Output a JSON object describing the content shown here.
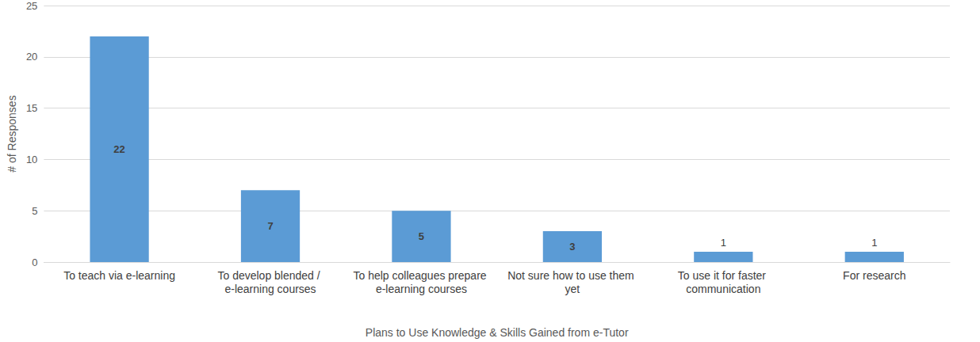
{
  "chart_data": {
    "type": "bar",
    "x_label": "Plans to Use Knowledge & Skills Gained from e-Tutor",
    "y_label": "# of Responses",
    "categories": [
      "To teach via e-learning",
      "To develop blended / e-learning courses",
      "To help colleagues prepare e-learning courses",
      "Not sure how to use them yet",
      "To use it for faster communication",
      "For research"
    ],
    "values": [
      22,
      7,
      5,
      3,
      1,
      1
    ],
    "color": "#5b9bd5",
    "ylim": [
      0,
      25
    ],
    "yticks": [
      0,
      5,
      10,
      15,
      20,
      25
    ],
    "grid": true,
    "data_labels": true
  }
}
